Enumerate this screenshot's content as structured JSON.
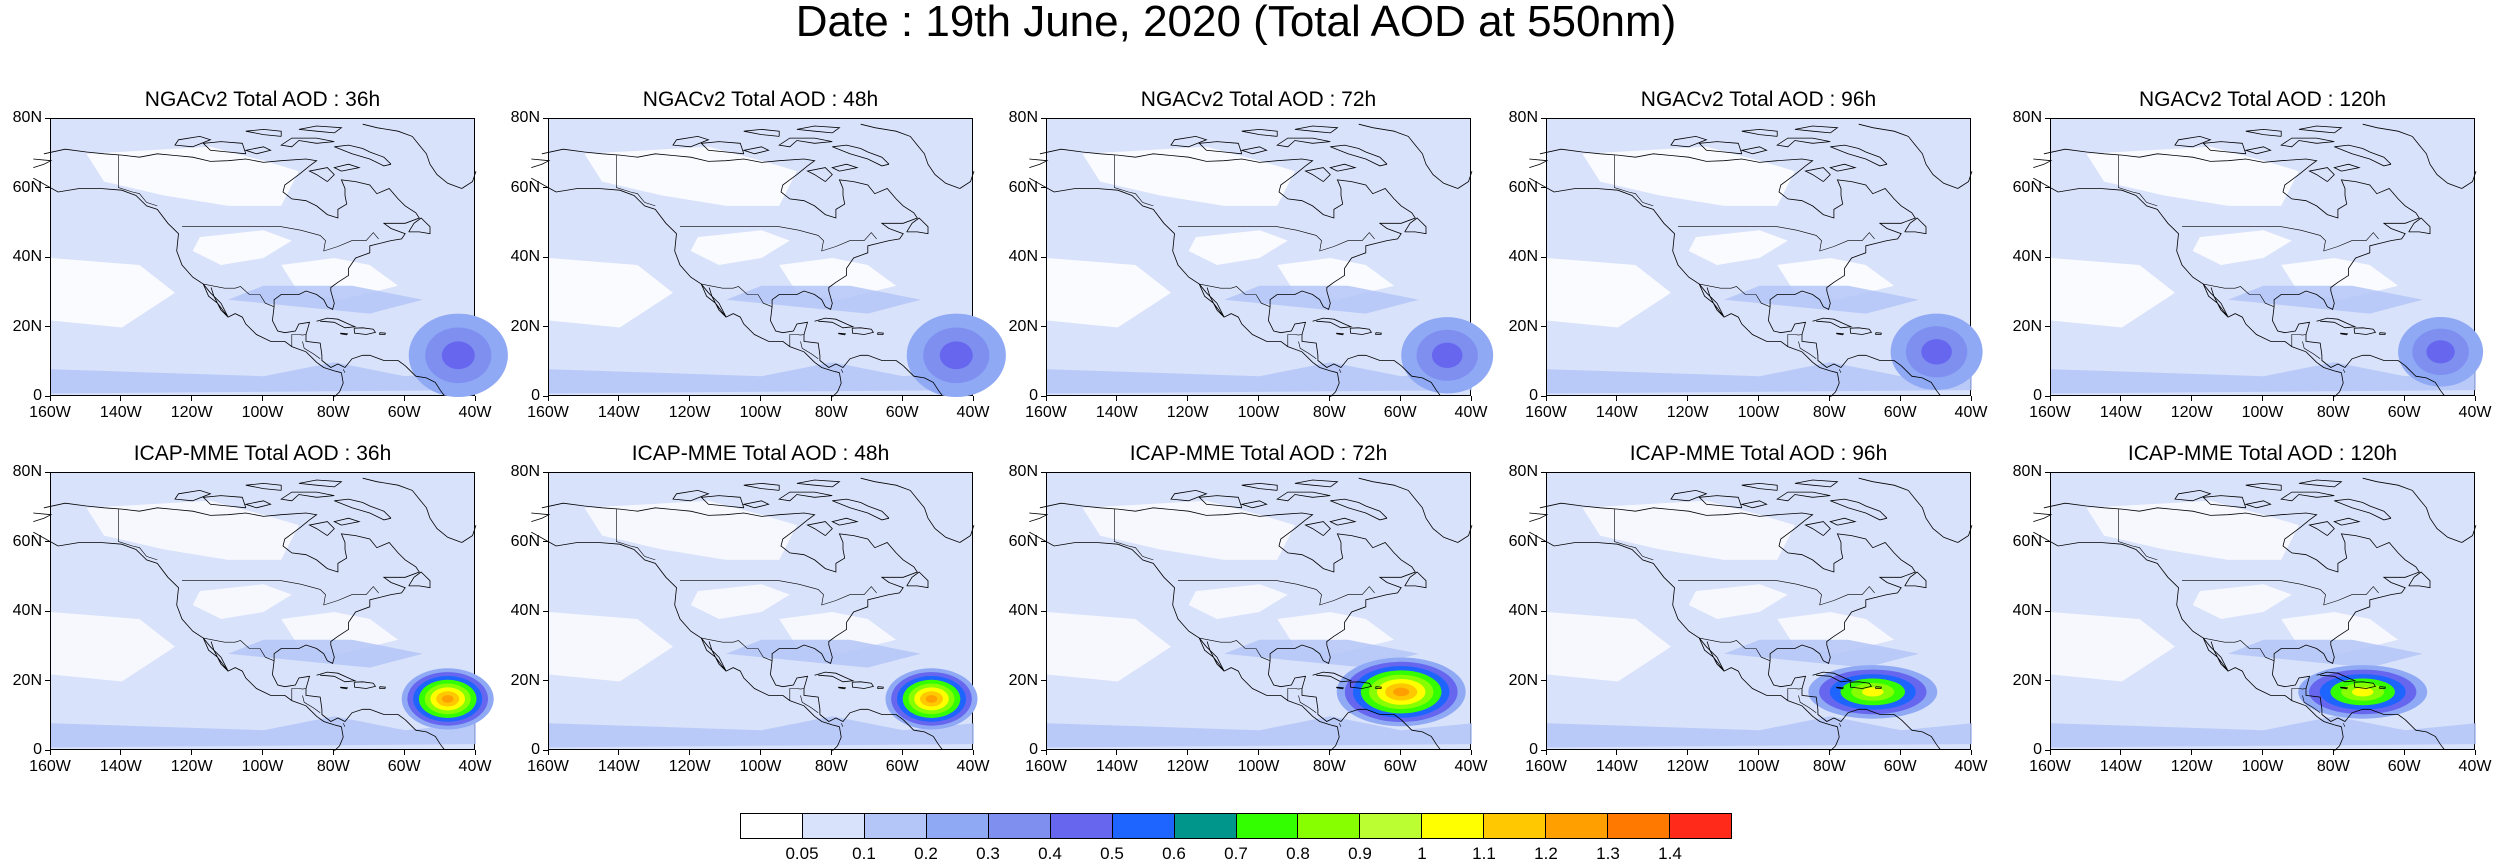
{
  "title": "Date : 19th June, 2020 (Total AOD at 550nm)",
  "y_tick_labels": [
    "80N",
    "60N",
    "40N",
    "20N",
    "0"
  ],
  "x_tick_labels_default": [
    "160W",
    "140W",
    "120W",
    "100W",
    "80W",
    "60W",
    "40W"
  ],
  "x_tick_labels_last": [
    "160W",
    "140W",
    "120W",
    "100W",
    "80W",
    "60W",
    "40W"
  ],
  "rows": [
    {
      "model": "NGACv2",
      "panels": [
        {
          "title": "NGACv2 Total AOD : 36h",
          "plume_aod": 0.5
        },
        {
          "title": "NGACv2 Total AOD : 48h",
          "plume_aod": 0.5
        },
        {
          "title": "NGACv2 Total AOD : 72h",
          "plume_aod": 0.5
        },
        {
          "title": "NGACv2 Total AOD : 96h",
          "plume_aod": 0.5
        },
        {
          "title": "NGACv2 Total AOD : 120h",
          "plume_aod": 0.5
        }
      ]
    },
    {
      "model": "ICAP-MME",
      "panels": [
        {
          "title": "ICAP-MME Total AOD : 36h",
          "plume_aod": 1.4
        },
        {
          "title": "ICAP-MME Total AOD : 48h",
          "plume_aod": 1.4
        },
        {
          "title": "ICAP-MME Total AOD : 72h",
          "plume_aod": 1.3
        },
        {
          "title": "ICAP-MME Total AOD : 96h",
          "plume_aod": 1.1
        },
        {
          "title": "ICAP-MME Total AOD : 120h",
          "plume_aod": 1.0
        }
      ]
    }
  ],
  "colorbar": {
    "labels": [
      "0.05",
      "0.1",
      "0.2",
      "0.3",
      "0.4",
      "0.5",
      "0.6",
      "0.7",
      "0.8",
      "0.9",
      "1",
      "1.1",
      "1.2",
      "1.3",
      "1.4"
    ],
    "colors": [
      "#ffffff",
      "#d9e2fb",
      "#b4c6f7",
      "#8fa9f5",
      "#7f8ff0",
      "#6666ee",
      "#1e64ff",
      "#00968c",
      "#33ff00",
      "#88ff00",
      "#bbff33",
      "#ffff00",
      "#ffc800",
      "#ffa000",
      "#ff7800",
      "#ff2a1a"
    ]
  }
}
